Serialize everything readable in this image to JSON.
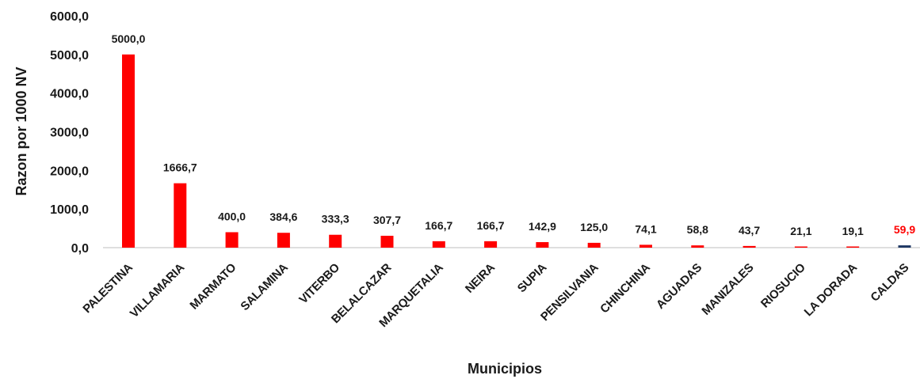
{
  "chart_data": {
    "type": "bar",
    "xlabel": "Municipios",
    "ylabel": "Razon por 1000 NV",
    "ylim": [
      0,
      6000
    ],
    "yticks": [
      "0,0",
      "1000,0",
      "2000,0",
      "3000,0",
      "4000,0",
      "5000,0",
      "6000,0"
    ],
    "ytick_values": [
      0,
      1000,
      2000,
      3000,
      4000,
      5000,
      6000
    ],
    "grid": false,
    "legend": "none",
    "categories": [
      "PALESTINA",
      "VILLAMARIA",
      "MARMATO",
      "SALAMINA",
      "VITERBO",
      "BELALCAZAR",
      "MARQUETALIA",
      "NEIRA",
      "SUPIA",
      "PENSILVANIA",
      "CHINCHINA",
      "AGUADAS",
      "MANIZALES",
      "RIOSUCIO",
      "LA DORADA",
      "CALDAS"
    ],
    "values": [
      5000.0,
      1666.7,
      400.0,
      384.6,
      333.3,
      307.7,
      166.7,
      166.7,
      142.9,
      125.0,
      74.1,
      58.8,
      43.7,
      21.1,
      19.1,
      59.9
    ],
    "value_labels": [
      "5000,0",
      "1666,7",
      "400,0",
      "384,6",
      "333,3",
      "307,7",
      "166,7",
      "166,7",
      "142,9",
      "125,0",
      "74,1",
      "58,8",
      "43,7",
      "21,1",
      "19,1",
      "59,9"
    ],
    "bar_colors": [
      "#ff0000",
      "#ff0000",
      "#ff0000",
      "#ff0000",
      "#ff0000",
      "#ff0000",
      "#ff0000",
      "#ff0000",
      "#ff0000",
      "#ff0000",
      "#ff0000",
      "#ff0000",
      "#ff0000",
      "#ff0000",
      "#ff0000",
      "#1f3864"
    ],
    "label_colors": [
      "#1a1a1a",
      "#1a1a1a",
      "#1a1a1a",
      "#1a1a1a",
      "#1a1a1a",
      "#1a1a1a",
      "#1a1a1a",
      "#1a1a1a",
      "#1a1a1a",
      "#1a1a1a",
      "#1a1a1a",
      "#1a1a1a",
      "#1a1a1a",
      "#1a1a1a",
      "#1a1a1a",
      "#ff0000"
    ]
  }
}
